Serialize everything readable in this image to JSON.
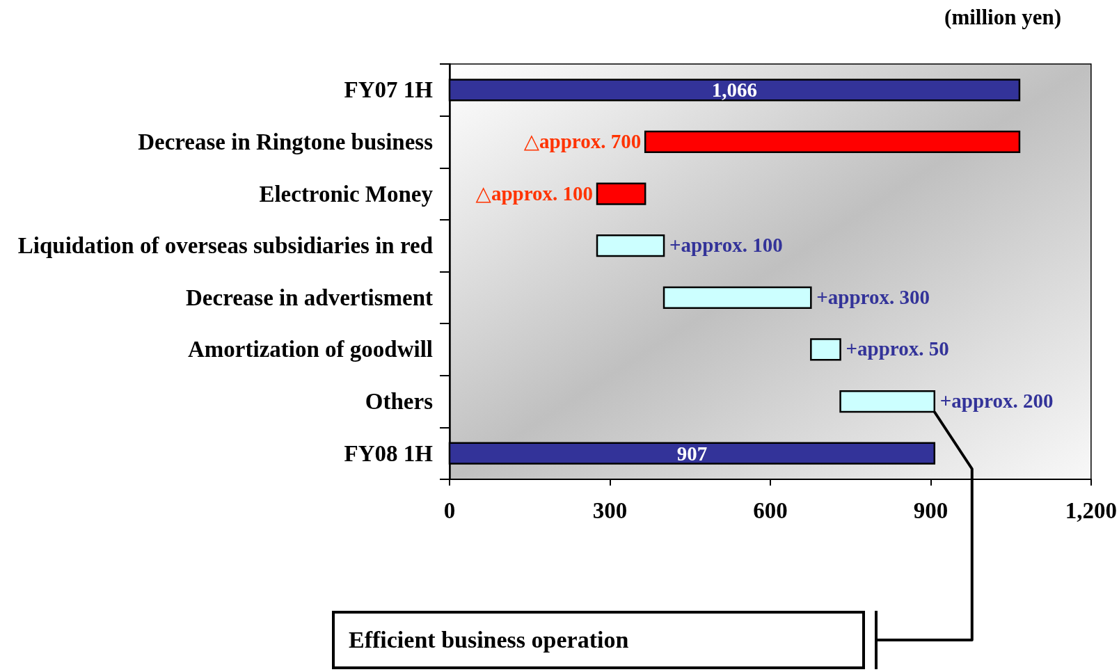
{
  "chart_data": {
    "type": "bar",
    "orientation": "horizontal",
    "categories": [
      "FY07 1H",
      "Decrease in Ringtone business",
      "Electronic Money",
      "Liquidation of overseas subsidiaries in red",
      "Decrease in advertisment",
      "Amortization of goodwill",
      "Others",
      "FY08 1H"
    ],
    "values": [
      1066,
      -700,
      -90,
      125,
      275,
      55,
      176,
      907
    ],
    "base": [
      0,
      1066,
      366,
      276,
      401,
      676,
      731,
      0
    ],
    "colors": [
      "#333399",
      "#ff0000",
      "#ff0000",
      "#ccffff",
      "#ccffff",
      "#ccffff",
      "#ccffff",
      "#333399"
    ],
    "value_labels": [
      "1,066",
      null,
      null,
      null,
      null,
      null,
      null,
      "907"
    ],
    "xlabel": "(million yen)",
    "xlim": [
      0,
      1200
    ],
    "xticks": [
      0,
      300,
      600,
      900,
      {
        "value": 1200,
        "label": "1,200"
      }
    ],
    "annotations": [
      {
        "text": "△approx. 700",
        "x": 366,
        "y": "Decrease in Ringtone business"
      },
      {
        "text": "△approx. 100",
        "x": 276,
        "y": "Electronic Money"
      },
      {
        "text": "+approx. 100",
        "x": 401,
        "y": "Liquidation of overseas subsidiaries in red"
      },
      {
        "text": "+approx. 300",
        "x": 676,
        "y": "Decrease in advertisment"
      },
      {
        "text": "+approx. 50",
        "x": 731,
        "y": "Amortization of goodwill"
      },
      {
        "text": "+approx. 200",
        "x": 907,
        "y": "Others"
      },
      "Efficient business operation"
    ]
  }
}
